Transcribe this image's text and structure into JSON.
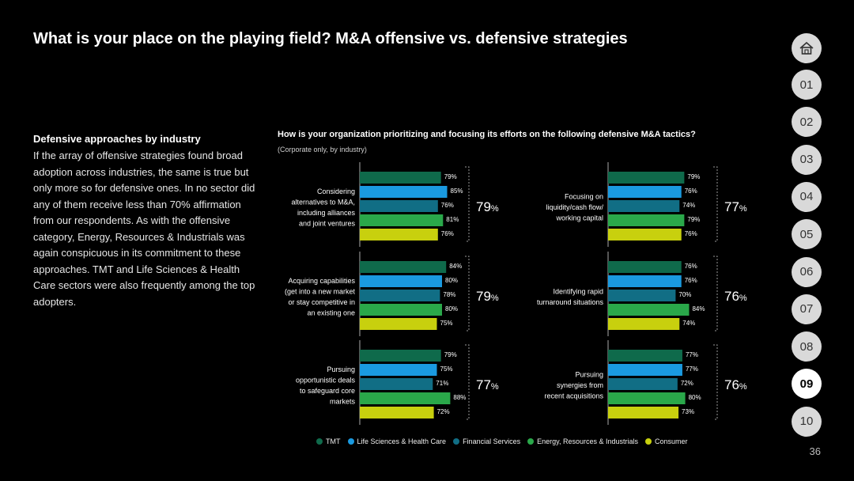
{
  "header": {
    "title": "What is your place on the playing field? M&A offensive vs. defensive strategies"
  },
  "left": {
    "heading": "Defensive approaches by industry",
    "body": "If the array of offensive strategies found broad adoption across industries, the same is true but only more so for defensive ones. In no sector did any of them receive less than 70% affirmation from our respondents. As with the offensive category, Energy, Resources & Industrials was again conspicuous in its commitment to these approaches. TMT and Life Sciences & Health Care sectors were also frequently among the top adopters."
  },
  "nav": {
    "home_icon": "house-icon",
    "items": [
      "01",
      "02",
      "03",
      "04",
      "05",
      "06",
      "07",
      "08",
      "09",
      "10"
    ],
    "active": "09"
  },
  "page_number": "36",
  "chart_data": {
    "type": "bar",
    "orientation": "horizontal",
    "title": "How is your organization prioritizing and focusing its efforts on the following defensive M&A tactics?",
    "subtitle": "(Corporate only, by industry)",
    "xlim": [
      0,
      100
    ],
    "series_names": [
      "TMT",
      "Life Sciences & Health Care",
      "Financial Services",
      "Energy, Resources & Industrials",
      "Consumer"
    ],
    "colors": [
      "#0f6a4b",
      "#1a9ae0",
      "#116e85",
      "#2aa84a",
      "#c8d00e"
    ],
    "groups": [
      {
        "label": [
          "Considering",
          "alternatives to M&A,",
          "including alliances",
          "and joint ventures"
        ],
        "values": [
          79,
          85,
          76,
          81,
          76
        ],
        "total": 79
      },
      {
        "label": [
          "Acquiring capabilities",
          "(get into a new market",
          "or stay competitive in",
          "an existing one"
        ],
        "values": [
          84,
          80,
          78,
          80,
          75
        ],
        "total": 79
      },
      {
        "label": [
          "Pursuing",
          "opportunistic deals",
          "to safeguard core",
          "markets"
        ],
        "values": [
          79,
          75,
          71,
          88,
          72
        ],
        "total": 77
      },
      {
        "label": [
          "Focusing on",
          "liquidity/cash flow/",
          "working capital"
        ],
        "values": [
          79,
          76,
          74,
          79,
          76
        ],
        "total": 77
      },
      {
        "label": [
          "Identifying rapid",
          "turnaround situations"
        ],
        "values": [
          76,
          76,
          70,
          84,
          74
        ],
        "total": 76
      },
      {
        "label": [
          "Pursuing",
          "synergies from",
          "recent acquisitions"
        ],
        "values": [
          77,
          77,
          72,
          80,
          73
        ],
        "total": 76
      }
    ]
  }
}
